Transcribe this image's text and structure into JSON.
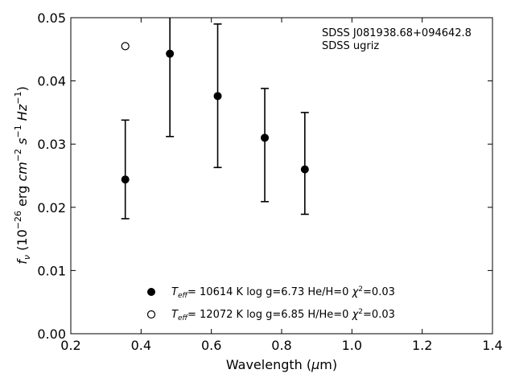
{
  "chart_data": {
    "type": "scatter",
    "xlabel": "Wavelength (μm)",
    "ylabel": "f_ν (10^-26 erg cm^-2 s^-1 Hz^-1)",
    "xlim": [
      0.2,
      1.4
    ],
    "ylim": [
      0.0,
      0.05
    ],
    "x_ticks": [
      0.2,
      0.4,
      0.6,
      0.8,
      1.0,
      1.2,
      1.4
    ],
    "y_ticks": [
      0.0,
      0.01,
      0.02,
      0.03,
      0.04,
      0.05
    ],
    "x_tick_labels": [
      "0.2",
      "0.4",
      "0.6",
      "0.8",
      "1.0",
      "1.2",
      "1.4"
    ],
    "y_tick_labels": [
      "0.00",
      "0.01",
      "0.02",
      "0.03",
      "0.04",
      "0.05"
    ],
    "grid": false,
    "annotations": [
      "SDSS J081938.68+094642.8",
      "SDSS ugriz"
    ],
    "observed": {
      "x": [
        0.355,
        0.482,
        0.618,
        0.752,
        0.866
      ],
      "y": [
        0.0244,
        0.0443,
        0.0376,
        0.031,
        0.026
      ],
      "yerr_low": [
        0.0182,
        0.0312,
        0.0263,
        0.0209,
        0.0189
      ],
      "yerr_high": [
        0.0338,
        0.0521,
        0.049,
        0.0388,
        0.035
      ]
    },
    "series": [
      {
        "name": "T_eff= 10614 K  log g=6.73  He/H=0  χ²=0.03",
        "marker": "filled-circle",
        "x": [
          0.355,
          0.482,
          0.618,
          0.752,
          0.866
        ],
        "y": [
          0.0244,
          0.0443,
          0.0376,
          0.031,
          0.026
        ]
      },
      {
        "name": "T_eff= 12072 K  log g=6.85  H/He=0  χ²=0.03",
        "marker": "open-circle",
        "x": [
          0.355
        ],
        "y": [
          0.0455
        ]
      }
    ],
    "legend_position": "lower-center",
    "legend": [
      {
        "teff": "10614 K",
        "rest": "log g=6.73  He/H=0",
        "chi": "=0.03"
      },
      {
        "teff": "12072 K",
        "rest": "log g=6.85  H/He=0",
        "chi": "=0.03"
      }
    ]
  }
}
